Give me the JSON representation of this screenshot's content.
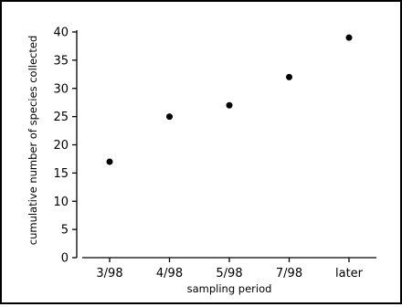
{
  "chart_data": {
    "type": "scatter",
    "title": "",
    "xlabel": "sampling period",
    "ylabel": "cumulative number of species collected",
    "categories": [
      "3/98",
      "4/98",
      "5/98",
      "7/98",
      "later"
    ],
    "series": [
      {
        "values": [
          17,
          25,
          27,
          32,
          39
        ]
      }
    ],
    "ylim": [
      0,
      40
    ],
    "yticks": [
      "0",
      "5",
      "10",
      "15",
      "20",
      "25",
      "30",
      "35",
      "40"
    ],
    "grid": false,
    "legend": "none",
    "marker_color": "#000000"
  }
}
